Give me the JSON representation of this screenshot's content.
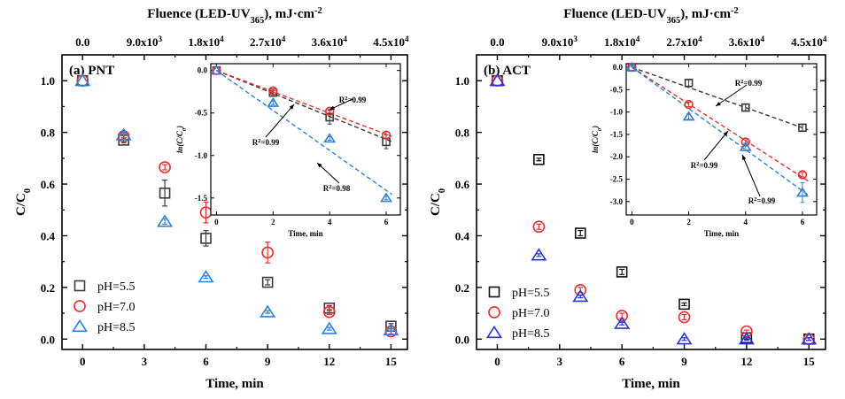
{
  "chart_data": [
    {
      "type": "scatter",
      "panel_label": "(a) PNT",
      "xlabel": "Time, min",
      "ylabel": "C/C0",
      "top_axis_label": "Fluence (LED-UV365), mJ·cm-2",
      "xlim": [
        -1,
        15.8
      ],
      "ylim": [
        -0.04,
        1.1
      ],
      "xticks": [
        "0",
        "3",
        "6",
        "9",
        "12",
        "15"
      ],
      "xtick_values": [
        0,
        3,
        6,
        9,
        12,
        15
      ],
      "yticks": [
        "0.0",
        "0.2",
        "0.4",
        "0.6",
        "0.8",
        "1.0"
      ],
      "ytick_values": [
        0,
        0.2,
        0.4,
        0.6,
        0.8,
        1.0
      ],
      "top_ticks": [
        "0.0",
        "9.0x103",
        "1.8x104",
        "2.7x104",
        "3.6x104",
        "4.5x104"
      ],
      "legend_position": "bottom-left",
      "x": [
        0,
        2,
        4,
        6,
        9,
        12,
        15
      ],
      "series": [
        {
          "name": "pH=5.5",
          "marker": "square",
          "color": "#3a3a3a",
          "values": [
            1.0,
            0.77,
            0.565,
            0.39,
            0.22,
            0.12,
            0.05
          ],
          "errors": [
            0,
            0.01,
            0.05,
            0.03,
            0.01,
            0.01,
            0.01
          ]
        },
        {
          "name": "pH=7.0",
          "marker": "circle",
          "color": "#e3302f",
          "values": [
            1.0,
            0.785,
            0.665,
            0.49,
            0.335,
            0.105,
            0.03
          ],
          "errors": [
            0,
            0.01,
            0.01,
            0.04,
            0.04,
            0.01,
            0.01
          ]
        },
        {
          "name": "pH=8.5",
          "marker": "triangle",
          "color": "#2f7fd4",
          "values": [
            1.0,
            0.79,
            0.455,
            0.24,
            0.105,
            0.04,
            0.035
          ],
          "errors": [
            0,
            0.01,
            0.01,
            0.005,
            0.005,
            0.005,
            0.005
          ]
        }
      ],
      "inset": {
        "xlabel": "Time, min",
        "ylabel": "ln(C/C0)",
        "xlim": [
          -0.2,
          6.5
        ],
        "ylim": [
          -1.7,
          0.08
        ],
        "xticks": [
          "0",
          "2",
          "4",
          "6"
        ],
        "xtick_values": [
          0,
          2,
          4,
          6
        ],
        "yticks": [
          "0.0",
          "-0.5",
          "-1.0",
          "-1.5"
        ],
        "ytick_values": [
          0,
          -0.5,
          -1.0,
          -1.5
        ],
        "x": [
          0,
          2,
          4,
          6
        ],
        "series": [
          {
            "marker": "square",
            "color": "#3a3a3a",
            "values": [
              0,
              -0.26,
              -0.55,
              -0.84
            ],
            "errors": [
              0,
              0.02,
              0.08,
              0.08
            ],
            "fit_slope": -0.135,
            "r2": "R2=0.99"
          },
          {
            "marker": "circle",
            "color": "#e3302f",
            "values": [
              0,
              -0.24,
              -0.48,
              -0.76
            ],
            "errors": [
              0,
              0.02,
              0.02,
              0.04
            ],
            "fit_slope": -0.125,
            "r2": "R2=0.99"
          },
          {
            "marker": "triangle",
            "color": "#2f7fd4",
            "values": [
              0,
              -0.38,
              -0.8,
              -1.5
            ],
            "errors": [
              0,
              0.02,
              0.02,
              0.02
            ],
            "fit_slope": -0.235,
            "r2": "R2=0.98"
          }
        ]
      }
    },
    {
      "type": "scatter",
      "panel_label": "(b) ACT",
      "xlabel": "Time, min",
      "ylabel": "C/C0",
      "top_axis_label": "Fluence (LED-UV365), mJ·cm-2",
      "xlim": [
        -1,
        15.8
      ],
      "ylim": [
        -0.04,
        1.1
      ],
      "xticks": [
        "0",
        "3",
        "6",
        "9",
        "12",
        "15"
      ],
      "xtick_values": [
        0,
        3,
        6,
        9,
        12,
        15
      ],
      "yticks": [
        "0.0",
        "0.2",
        "0.4",
        "0.6",
        "0.8",
        "1.0"
      ],
      "ytick_values": [
        0,
        0.2,
        0.4,
        0.6,
        0.8,
        1.0
      ],
      "top_ticks": [
        "0.0",
        "9.0x103",
        "1.8x104",
        "2.7x104",
        "3.6x104",
        "4.5x104"
      ],
      "legend_position": "bottom-left",
      "x": [
        0,
        2,
        4,
        6,
        9,
        12,
        15
      ],
      "series": [
        {
          "name": "pH=5.5",
          "marker": "square",
          "color": "#111111",
          "values": [
            1.0,
            0.695,
            0.41,
            0.26,
            0.135,
            0.005,
            0.0
          ],
          "errors": [
            0,
            0.005,
            0.01,
            0.01,
            0.005,
            0.005,
            0.005
          ]
        },
        {
          "name": "pH=7.0",
          "marker": "circle",
          "color": "#e3302f",
          "values": [
            1.0,
            0.435,
            0.19,
            0.09,
            0.085,
            0.03,
            0.0
          ],
          "errors": [
            0,
            0.01,
            0.01,
            0.01,
            0.01,
            0.005,
            0.005
          ]
        },
        {
          "name": "pH=8.5",
          "marker": "triangle",
          "color": "#2a33d6",
          "values": [
            1.0,
            0.325,
            0.165,
            0.06,
            0.0,
            0.0,
            0.0
          ],
          "errors": [
            0,
            0.005,
            0.005,
            0.005,
            0.005,
            0.005,
            0.005
          ]
        }
      ],
      "inset": {
        "xlabel": "Time, min",
        "ylabel": "ln(C/C0)",
        "xlim": [
          -0.2,
          6.5
        ],
        "ylim": [
          -3.3,
          0.08
        ],
        "xticks": [
          "0",
          "2",
          "4",
          "6"
        ],
        "xtick_values": [
          0,
          2,
          4,
          6
        ],
        "yticks": [
          "0.0",
          "-0.5",
          "-1.0",
          "-1.5",
          "-2.0",
          "-2.5",
          "-3.0"
        ],
        "ytick_values": [
          0,
          -0.5,
          -1.0,
          -1.5,
          -2.0,
          -2.5,
          -3.0
        ],
        "x": [
          0,
          2,
          4,
          6
        ],
        "series": [
          {
            "marker": "square",
            "color": "#3a3a3a",
            "values": [
              0,
              -0.35,
              -0.9,
              -1.35
            ],
            "errors": [
              0,
              0.07,
              0.07,
              0.07
            ],
            "fit_slope": -0.225,
            "r2": "R2=0.99"
          },
          {
            "marker": "circle",
            "color": "#e3302f",
            "values": [
              0,
              -0.83,
              -1.67,
              -2.4
            ],
            "errors": [
              0,
              0.05,
              0.05,
              0.05
            ],
            "fit_slope": -0.41,
            "r2": "R2=0.99"
          },
          {
            "marker": "triangle",
            "color": "#2f7fd4",
            "values": [
              0,
              -1.1,
              -1.78,
              -2.8
            ],
            "errors": [
              0,
              0.06,
              0.08,
              0.22
            ],
            "fit_slope": -0.46,
            "r2": "R2=0.99"
          }
        ]
      }
    }
  ]
}
